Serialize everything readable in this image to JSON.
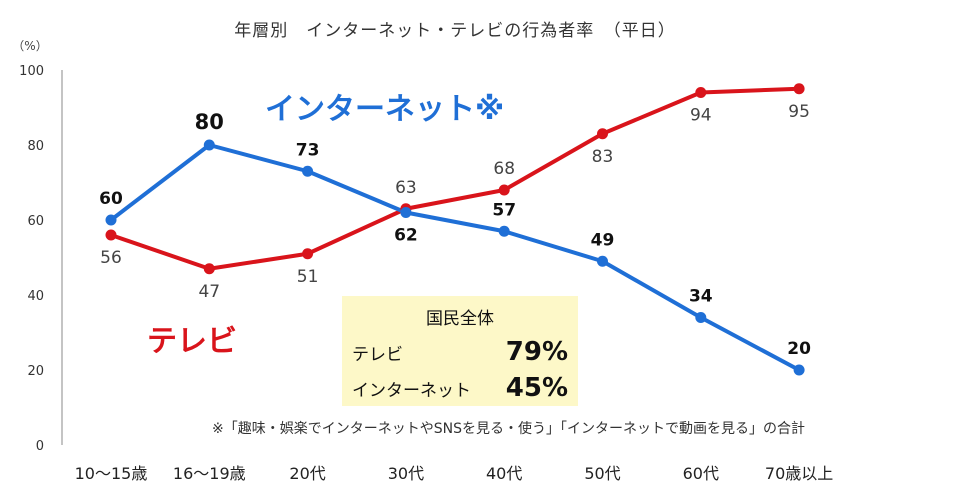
{
  "chart_data": {
    "type": "line",
    "title": "年層別　インターネット・テレビの行為者率　（平日）",
    "y_unit": "（%）",
    "ylim": [
      0,
      100
    ],
    "yticks": [
      0,
      20,
      40,
      60,
      80,
      100
    ],
    "categories": [
      "10～15歳",
      "16～19歳",
      "20代",
      "30代",
      "40代",
      "50代",
      "60代",
      "70歳以上"
    ],
    "series": [
      {
        "name": "インターネット※",
        "color": "#1f6fd6",
        "values": [
          60,
          80,
          73,
          62,
          57,
          49,
          34,
          20
        ]
      },
      {
        "name": "テレビ",
        "color": "#d9141b",
        "values": [
          56,
          47,
          51,
          63,
          68,
          83,
          94,
          95
        ]
      }
    ]
  },
  "summary": {
    "title": "国民全体",
    "rows": [
      {
        "label": "テレビ",
        "value": "79%"
      },
      {
        "label": "インターネット",
        "value": "45%"
      }
    ]
  },
  "footnote": "※「趣味・娯楽でインターネットやSNSを見る・使う」「インターネットで動画を見る」の合計"
}
